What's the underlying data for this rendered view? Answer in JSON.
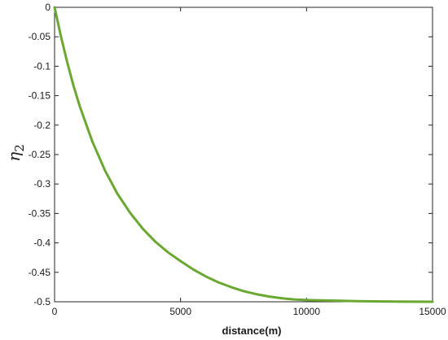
{
  "chart_data": {
    "type": "line",
    "title": "",
    "xlabel": "distance(m)",
    "ylabel": {
      "symbol": "η",
      "subscript": "2"
    },
    "xlim": [
      0,
      15000
    ],
    "ylim": [
      -0.5,
      0
    ],
    "x_ticks": [
      0,
      5000,
      10000,
      15000
    ],
    "x_tick_labels": [
      "0",
      "5000",
      "10000",
      "15000"
    ],
    "y_ticks": [
      0,
      -0.05,
      -0.1,
      -0.15,
      -0.2,
      -0.25,
      -0.3,
      -0.35,
      -0.4,
      -0.45,
      -0.5
    ],
    "y_tick_labels": [
      "0",
      "-0.05",
      "-0.1",
      "-0.15",
      "-0.2",
      "-0.25",
      "-0.3",
      "-0.35",
      "-0.4",
      "-0.45",
      "-0.5"
    ],
    "grid": false,
    "series": [
      {
        "color": "#6aa832",
        "x": [
          0,
          250,
          500,
          750,
          1000,
          1500,
          2000,
          2500,
          3000,
          3500,
          4000,
          4500,
          5000,
          5500,
          6000,
          6500,
          7000,
          7500,
          8000,
          8500,
          9000,
          9500,
          10000,
          11000,
          12000,
          13000,
          14000,
          15000
        ],
        "y": [
          0,
          -0.049,
          -0.093,
          -0.133,
          -0.168,
          -0.228,
          -0.277,
          -0.317,
          -0.349,
          -0.376,
          -0.398,
          -0.416,
          -0.431,
          -0.445,
          -0.457,
          -0.467,
          -0.475,
          -0.482,
          -0.487,
          -0.491,
          -0.494,
          -0.496,
          -0.497,
          -0.498,
          -0.499,
          -0.4995,
          -0.4998,
          -0.5
        ]
      }
    ]
  }
}
